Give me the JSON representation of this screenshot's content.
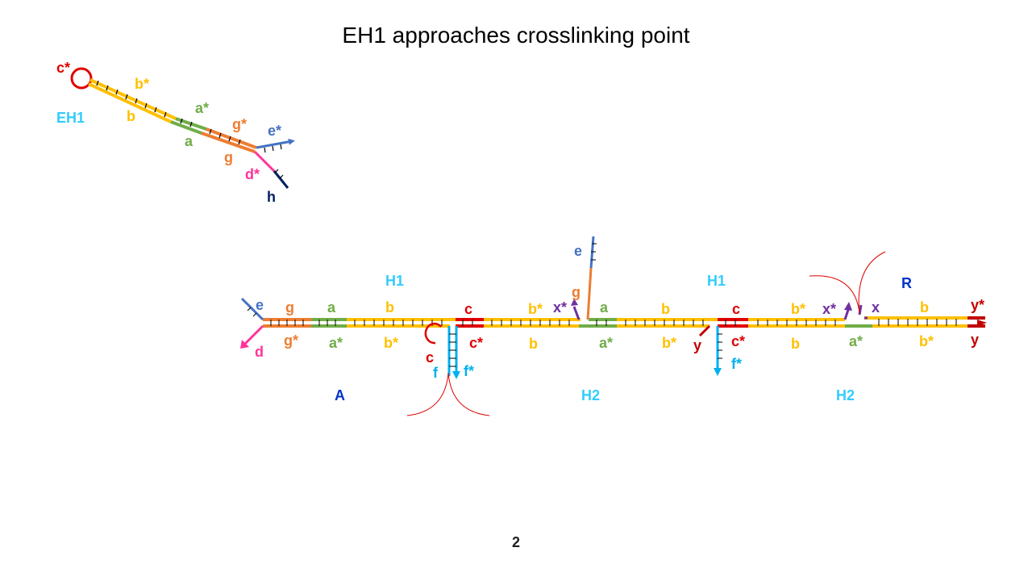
{
  "slide": {
    "title": "EH1 approaches crosslinking point",
    "page_number": "2"
  },
  "colors": {
    "yellow": "#ffc000",
    "green": "#70ad47",
    "orange": "#ed7d31",
    "blue": "#4472c4",
    "pink": "#ff3399",
    "navy": "#002060",
    "red": "#e00000",
    "darkred": "#c00000",
    "cyan": "#00b0f0",
    "purple": "#7030a0",
    "cyan_label": "#33ccff",
    "blue_label": "#0033cc"
  },
  "eh1": {
    "name": "EH1",
    "labels": {
      "c_star": "c*",
      "b_star": "b*",
      "b": "b",
      "a_star": "a*",
      "a": "a",
      "g_star": "g*",
      "g": "g",
      "e_star": "e*",
      "d_star": "d*",
      "h": "h"
    }
  },
  "assembly": {
    "top": {
      "H1_left": "H1",
      "H1_right": "H1",
      "R": "R",
      "e": "e",
      "g": "g",
      "a": "a",
      "b": "b",
      "c": "c",
      "b_star": "b*",
      "x_star": "x*",
      "e_up": "e",
      "g_up": "g",
      "a2": "a",
      "b2": "b",
      "c2": "c",
      "b_star2": "b*",
      "x_star2": "x*",
      "x": "x",
      "b3": "b",
      "y_star": "y*"
    },
    "bottom": {
      "d": "d",
      "g_star": "g*",
      "a_star": "a*",
      "b_star": "b*",
      "c": "c",
      "c_star": "c*",
      "f": "f",
      "f_star": "f*",
      "b": "b",
      "a_star2": "a*",
      "b_star2": "b*",
      "y": "y",
      "c_star2": "c*",
      "f_star2": "f*",
      "b2": "b",
      "a_star3": "a*",
      "b_star3": "b*",
      "y_end": "y"
    },
    "strands": {
      "A": "A",
      "H2_left": "H2",
      "H2_right": "H2"
    }
  }
}
